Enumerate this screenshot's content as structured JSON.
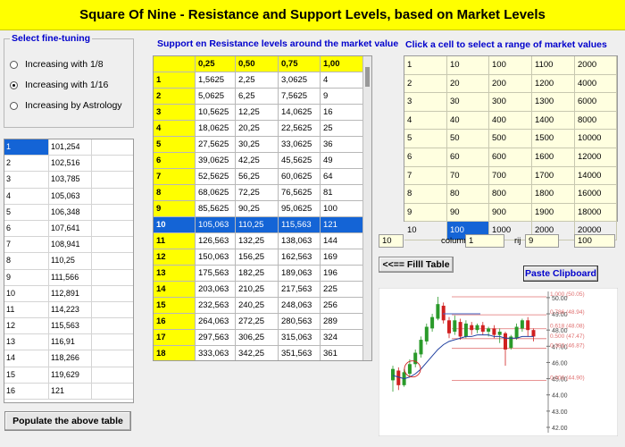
{
  "title": "Square Of Nine - Resistance and Support Levels, based on Market Levels",
  "fine_tuning": {
    "title": "Select fine-tuning",
    "options": [
      "Increasing with 1/8",
      "Increasing with 1/16",
      "Increasing by Astrology"
    ],
    "selected_index": 1
  },
  "left_list": {
    "rows": [
      [
        "1",
        "101,254"
      ],
      [
        "2",
        "102,516"
      ],
      [
        "3",
        "103,785"
      ],
      [
        "4",
        "105,063"
      ],
      [
        "5",
        "106,348"
      ],
      [
        "6",
        "107,641"
      ],
      [
        "7",
        "108,941"
      ],
      [
        "8",
        "110,25"
      ],
      [
        "9",
        "111,566"
      ],
      [
        "10",
        "112,891"
      ],
      [
        "11",
        "114,223"
      ],
      [
        "12",
        "115,563"
      ],
      [
        "13",
        "116,91"
      ],
      [
        "14",
        "118,266"
      ],
      [
        "15",
        "119,629"
      ],
      [
        "16",
        "121"
      ]
    ],
    "selected_row": 0
  },
  "populate_button": "Populate the above table",
  "support_resistance": {
    "title": "Support en Resistance levels around the market value",
    "headers": [
      "",
      "0,25",
      "0,50",
      "0,75",
      "1,00"
    ],
    "rows": [
      [
        "1",
        "1,5625",
        "2,25",
        "3,0625",
        "4"
      ],
      [
        "2",
        "5,0625",
        "6,25",
        "7,5625",
        "9"
      ],
      [
        "3",
        "10,5625",
        "12,25",
        "14,0625",
        "16"
      ],
      [
        "4",
        "18,0625",
        "20,25",
        "22,5625",
        "25"
      ],
      [
        "5",
        "27,5625",
        "30,25",
        "33,0625",
        "36"
      ],
      [
        "6",
        "39,0625",
        "42,25",
        "45,5625",
        "49"
      ],
      [
        "7",
        "52,5625",
        "56,25",
        "60,0625",
        "64"
      ],
      [
        "8",
        "68,0625",
        "72,25",
        "76,5625",
        "81"
      ],
      [
        "9",
        "85,5625",
        "90,25",
        "95,0625",
        "100"
      ],
      [
        "10",
        "105,063",
        "110,25",
        "115,563",
        "121"
      ],
      [
        "11",
        "126,563",
        "132,25",
        "138,063",
        "144"
      ],
      [
        "12",
        "150,063",
        "156,25",
        "162,563",
        "169"
      ],
      [
        "13",
        "175,563",
        "182,25",
        "189,063",
        "196"
      ],
      [
        "14",
        "203,063",
        "210,25",
        "217,563",
        "225"
      ],
      [
        "15",
        "232,563",
        "240,25",
        "248,063",
        "256"
      ],
      [
        "16",
        "264,063",
        "272,25",
        "280,563",
        "289"
      ],
      [
        "17",
        "297,563",
        "306,25",
        "315,063",
        "324"
      ],
      [
        "18",
        "333,063",
        "342,25",
        "351,563",
        "361"
      ]
    ],
    "selected_row": 9
  },
  "market_values": {
    "title": "Click a cell to select a range of market values",
    "rows": [
      [
        "1",
        "10",
        "100",
        "1100",
        "2000"
      ],
      [
        "2",
        "20",
        "200",
        "1200",
        "4000"
      ],
      [
        "3",
        "30",
        "300",
        "1300",
        "6000"
      ],
      [
        "4",
        "40",
        "400",
        "1400",
        "8000"
      ],
      [
        "5",
        "50",
        "500",
        "1500",
        "10000"
      ],
      [
        "6",
        "60",
        "600",
        "1600",
        "12000"
      ],
      [
        "7",
        "70",
        "700",
        "1700",
        "14000"
      ],
      [
        "8",
        "80",
        "800",
        "1800",
        "16000"
      ],
      [
        "9",
        "90",
        "900",
        "1900",
        "18000"
      ],
      [
        "10",
        "100",
        "1000",
        "2000",
        "20000"
      ]
    ],
    "selected": [
      9,
      1
    ]
  },
  "controls": {
    "value_field": "10",
    "column_label": "column",
    "column_value": "1",
    "rij_label": "rij",
    "rij_value": "9",
    "result_field": "100",
    "fill_button": "<<== Filll Table",
    "paste_button": "Paste Clipboard"
  },
  "chart": {
    "y_ticks": [
      "50.00",
      "49.00",
      "48.00",
      "47.00",
      "46.00",
      "45.00",
      "44.00",
      "43.00",
      "42.00"
    ],
    "fib_labels": [
      "1.000 (50.05)",
      "0.786 (48.94)",
      "0.618 (48.08)",
      "0.500 (47.47)",
      "0.383 (46.87)",
      "0.000 (44.90)"
    ],
    "colors": {
      "fib": "#e07070",
      "up": "#2a9a2a",
      "down": "#d02020",
      "ma": "#2040a0"
    }
  }
}
